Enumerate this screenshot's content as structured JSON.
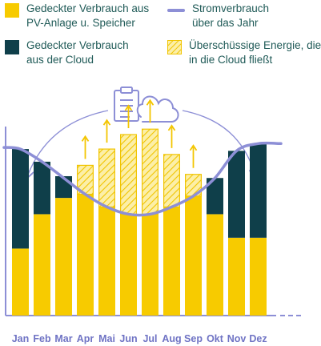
{
  "legend": {
    "pv": {
      "line1": "Gedeckter Verbrauch aus",
      "line2": "PV-Anlage u. Speicher"
    },
    "consumption": {
      "line1": "Stromverbrauch",
      "line2": "über das Jahr"
    },
    "cloud": {
      "line1": "Gedeckter Verbrauch",
      "line2": "aus der Cloud"
    },
    "surplus": {
      "line1": "Überschüssige Energie, die",
      "line2": "in die Cloud fließt"
    }
  },
  "colors": {
    "pv": "#F7CB00",
    "cloud": "#0F3F4A",
    "consumption": "#8D8FD6",
    "surplus_hatch": "#F0C400",
    "surplus_fill": "#FCEFA8",
    "axis": "#8D8FD6",
    "label": "#6F73C4",
    "text": "#1F5A57",
    "arrow": "#F3C500",
    "icon": "#8D8FD6"
  },
  "icons": [
    "document-icon",
    "cloud-icon",
    "up-arrow-icon",
    "curved-arrow-icon"
  ],
  "chart_data": {
    "type": "bar",
    "categories": [
      "Jan",
      "Feb",
      "Mar",
      "Apr",
      "Mai",
      "Jun",
      "Jul",
      "Aug",
      "Sep",
      "Okt",
      "Nov",
      "Dez"
    ],
    "ylim": [
      0,
      100
    ],
    "y_axis_labels": false,
    "series": [
      {
        "name": "Gedeckter Verbrauch aus PV-Anlage u. Speicher",
        "values": [
          37,
          56,
          65,
          67,
          60,
          56,
          56,
          60,
          66,
          56,
          43,
          43
        ]
      },
      {
        "name": "Gedeckter Verbrauch aus der Cloud",
        "values": [
          55,
          29,
          12,
          0,
          0,
          0,
          0,
          0,
          0,
          20,
          48,
          52
        ]
      },
      {
        "name": "Überschüssige Energie, die in die Cloud fließt",
        "values": [
          0,
          0,
          0,
          16,
          32,
          44,
          47,
          29,
          12,
          0,
          0,
          0
        ]
      },
      {
        "name": "Stromverbrauch über das Jahr",
        "type": "line",
        "values": [
          92,
          85,
          76,
          67,
          60,
          56,
          56,
          60,
          66,
          76,
          91,
          95
        ]
      }
    ],
    "surplus_arrows": [
      "Apr",
      "Mai",
      "Jun",
      "Jul",
      "Aug",
      "Sep"
    ]
  }
}
